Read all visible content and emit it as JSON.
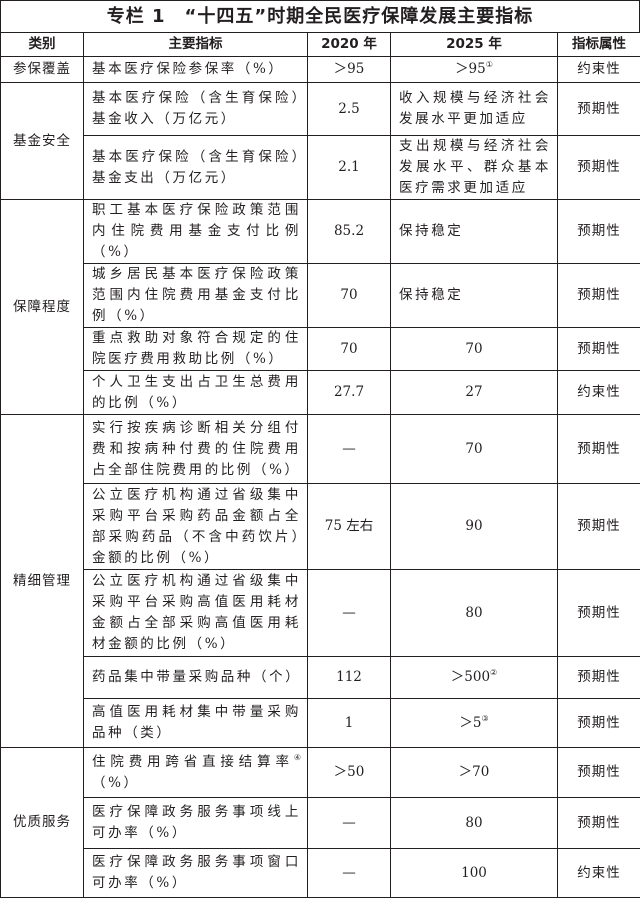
{
  "title": "专栏 1　“十四五”时期全民医疗保障发展主要指标",
  "headers": [
    "类别",
    "主要指标",
    "2020 年",
    "2025 年",
    "指标属性"
  ],
  "rows": [
    {
      "category": "参保覆盖",
      "span": 1,
      "indicator": "基本医疗保险参保率（%）",
      "v2020": "＞95",
      "v2025": "＞95",
      "sup2025": "①",
      "attr": "约束性"
    },
    {
      "category": "基金安全",
      "span": 2,
      "indicator": "基本医疗保险（含生育保险）基金收入（万亿元）",
      "v2020": "2.5",
      "v2025": "收入规模与经济社会发展水平更加适应",
      "v2025_text": true,
      "attr": "预期性"
    },
    {
      "indicator": "基本医疗保险（含生育保险）基金支出（万亿元）",
      "v2020": "2.1",
      "v2025": "支出规模与经济社会发展水平、群众基本医疗需求更加适应",
      "v2025_text": true,
      "attr": "预期性"
    },
    {
      "category": "保障程度",
      "span": 4,
      "indicator": "职工基本医疗保险政策范围内住院费用基金支付比例（%）",
      "v2020": "85.2",
      "v2025": "保持稳定",
      "v2025_text": true,
      "attr": "预期性"
    },
    {
      "indicator": "城乡居民基本医疗保险政策范围内住院费用基金支付比例（%）",
      "v2020": "70",
      "v2025": "保持稳定",
      "v2025_text": true,
      "attr": "预期性"
    },
    {
      "indicator": "重点救助对象符合规定的住院医疗费用救助比例（%）",
      "v2020": "70",
      "v2025": "70",
      "attr": "预期性"
    },
    {
      "indicator": "个人卫生支出占卫生总费用的比例（%）",
      "v2020": "27.7",
      "v2025": "27",
      "attr": "约束性"
    },
    {
      "category": "精细管理",
      "span": 5,
      "indicator": "实行按疾病诊断相关分组付费和按病种付费的住院费用占全部住院费用的比例（%）",
      "v2020": "—",
      "v2025": "70",
      "attr": "预期性"
    },
    {
      "indicator": "公立医疗机构通过省级集中采购平台采购药品金额占全部采购药品（不含中药饮片）金额的比例（%）",
      "v2020": "75 左右",
      "v2025": "90",
      "attr": "预期性"
    },
    {
      "indicator": "公立医疗机构通过省级集中采购平台采购高值医用耗材金额占全部采购高值医用耗材金额的比例（%）",
      "v2020": "—",
      "v2025": "80",
      "attr": "预期性"
    },
    {
      "indicator": "药品集中带量采购品种（个）",
      "v2020": "112",
      "v2025": "＞500",
      "sup2025": "②",
      "attr": "预期性"
    },
    {
      "indicator": "高值医用耗材集中带量采购品种（类）",
      "v2020": "1",
      "v2025": "＞5",
      "sup2025": "③",
      "attr": "预期性"
    },
    {
      "category": "优质服务",
      "span": 3,
      "indicator": "住院费用跨省直接结算率",
      "supInd": "④",
      "indicatorTail": "（%）",
      "v2020": "＞50",
      "v2025": "＞70",
      "attr": "预期性"
    },
    {
      "indicator": "医疗保障政务服务事项线上可办率（%）",
      "v2020": "—",
      "v2025": "80",
      "attr": "预期性"
    },
    {
      "indicator": "医疗保障政务服务事项窗口可办率（%）",
      "v2020": "—",
      "v2025": "100",
      "attr": "约束性"
    }
  ]
}
